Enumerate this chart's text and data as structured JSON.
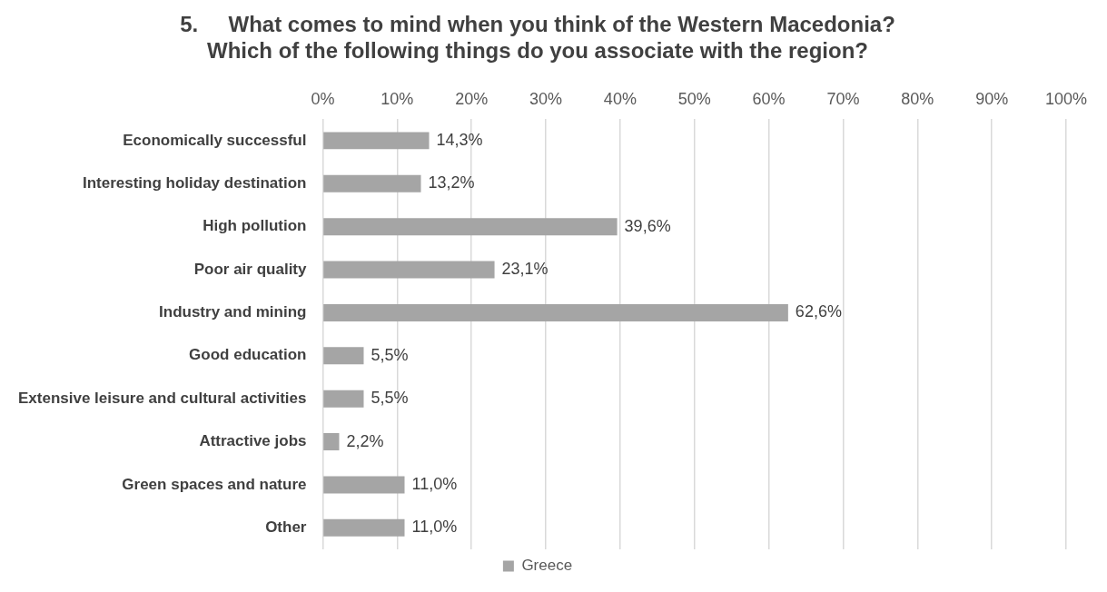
{
  "chart_data": {
    "type": "bar",
    "orientation": "horizontal",
    "title": "5.     What comes to mind when you think of the Western Macedonia?\nWhich of the following things do you associate with the region?",
    "categories": [
      "Economically successful",
      "Interesting holiday destination",
      "High pollution",
      "Poor air quality",
      "Industry and mining",
      "Good education",
      "Extensive leisure and cultural activities",
      "Attractive jobs",
      "Green spaces and nature",
      "Other"
    ],
    "series": [
      {
        "name": "Greece",
        "color": "#a5a5a5",
        "values": [
          14.3,
          13.2,
          39.6,
          23.1,
          62.6,
          5.5,
          5.5,
          2.2,
          11.0,
          11.0
        ],
        "value_labels": [
          "14,3%",
          "13,2%",
          "39,6%",
          "23,1%",
          "62,6%",
          "5,5%",
          "5,5%",
          "2,2%",
          "11,0%",
          "11,0%"
        ]
      }
    ],
    "xlim": [
      0,
      100
    ],
    "xticks": [
      {
        "value": 0,
        "label": "0%"
      },
      {
        "value": 10,
        "label": "10%"
      },
      {
        "value": 20,
        "label": "20%"
      },
      {
        "value": 30,
        "label": "30%"
      },
      {
        "value": 40,
        "label": "40%"
      },
      {
        "value": 50,
        "label": "50%"
      },
      {
        "value": 60,
        "label": "60%"
      },
      {
        "value": 70,
        "label": "70%"
      },
      {
        "value": 80,
        "label": "80%"
      },
      {
        "value": 90,
        "label": "90%"
      },
      {
        "value": 100,
        "label": "100%"
      }
    ],
    "grid": "x",
    "legend": "bottom"
  }
}
